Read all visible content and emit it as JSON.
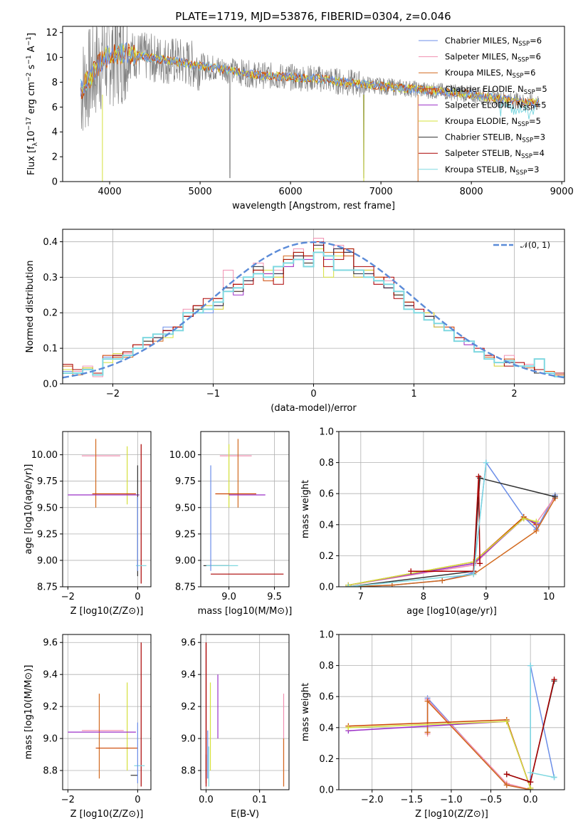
{
  "title": "PLATE=1719, MJD=53876, FIBERID=0304, z=0.046",
  "colors": [
    "#6b8ee8",
    "#f08fb0",
    "#d2691e",
    "#cc4400",
    "#9b30c8",
    "#d4e03a",
    "#333333",
    "#aa0000",
    "#7fd8e0"
  ],
  "chart_data": [
    {
      "id": "spectrum",
      "type": "line",
      "xlabel": "wavelength [Angstrom, rest frame]",
      "ylabel": "Flux [f_λ 10^-17 erg cm^-2 s^-1 A^-1]",
      "xlim": [
        3480,
        9030
      ],
      "ylim": [
        0,
        12.5
      ],
      "xticks": [
        "4000",
        "5000",
        "6000",
        "7000",
        "8000",
        "9000"
      ],
      "yticks": [
        "0",
        "2",
        "4",
        "6",
        "8",
        "10",
        "12"
      ],
      "grid": false,
      "legend_position": "top-right",
      "legend": [
        {
          "text": "Chabrier MILES, N",
          "sub": "SSP",
          "suffix": "=6"
        },
        {
          "text": "Salpeter MILES, N",
          "sub": "SSP",
          "suffix": "=6"
        },
        {
          "text": "Kroupa MILES, N",
          "sub": "SSP",
          "suffix": "=6"
        },
        {
          "text": "Chabrier ELODIE, N",
          "sub": "SSP",
          "suffix": "=5"
        },
        {
          "text": "Salpeter ELODIE, N",
          "sub": "SSP",
          "suffix": "=5"
        },
        {
          "text": "Kroupa ELODIE, N",
          "sub": "SSP",
          "suffix": "=5"
        },
        {
          "text": "Chabrier STELIB, N",
          "sub": "SSP",
          "suffix": "=3"
        },
        {
          "text": "Salpeter STELIB, N",
          "sub": "SSP",
          "suffix": "=4"
        },
        {
          "text": "Kroupa STELIB, N",
          "sub": "SSP",
          "suffix": "=3"
        }
      ],
      "model_curve": {
        "x": [
          3680,
          3800,
          3900,
          4000,
          4200,
          4500,
          4800,
          5000,
          5300,
          5600,
          6000,
          6300,
          6600,
          7000,
          7300,
          7600,
          7800,
          8000,
          8200,
          8400,
          8600,
          8750
        ],
        "y": [
          7.4,
          8.6,
          9.6,
          10.2,
          10.3,
          9.9,
          9.6,
          9.3,
          9.0,
          8.6,
          8.4,
          8.3,
          8.0,
          7.7,
          7.5,
          7.3,
          7.2,
          7.0,
          6.8,
          6.6,
          6.4,
          6.3
        ]
      }
    },
    {
      "id": "residuals",
      "type": "step",
      "xlabel": "(data-model)/error",
      "ylabel": "Normed distribution",
      "xlim": [
        -2.5,
        2.5
      ],
      "ylim": [
        0,
        0.435
      ],
      "xticks": [
        "−2",
        "−1",
        "0",
        "1",
        "2"
      ],
      "yticks": [
        "0.0",
        "0.1",
        "0.2",
        "0.3",
        "0.4"
      ],
      "grid": true,
      "legend_position": "top-right",
      "gaussian_label": "𝒩(0, 1)",
      "bin_width": 0.1,
      "bin_start": -2.5,
      "series": [
        [
          0.035,
          0.03,
          0.045,
          0.025,
          0.075,
          0.08,
          0.08,
          0.1,
          0.12,
          0.13,
          0.16,
          0.15,
          0.2,
          0.22,
          0.2,
          0.22,
          0.26,
          0.27,
          0.3,
          0.33,
          0.3,
          0.31,
          0.35,
          0.37,
          0.33,
          0.4,
          0.36,
          0.38,
          0.37,
          0.31,
          0.31,
          0.29,
          0.27,
          0.26,
          0.22,
          0.2,
          0.19,
          0.17,
          0.15,
          0.12,
          0.12,
          0.09,
          0.07,
          0.06,
          0.065,
          0.05,
          0.05,
          0.03,
          0.03,
          0.02
        ],
        [
          0.04,
          0.035,
          0.05,
          0.02,
          0.08,
          0.085,
          0.085,
          0.1,
          0.11,
          0.14,
          0.15,
          0.15,
          0.21,
          0.2,
          0.22,
          0.21,
          0.32,
          0.28,
          0.3,
          0.34,
          0.3,
          0.32,
          0.33,
          0.38,
          0.35,
          0.41,
          0.35,
          0.39,
          0.36,
          0.3,
          0.3,
          0.28,
          0.29,
          0.25,
          0.23,
          0.21,
          0.19,
          0.16,
          0.16,
          0.13,
          0.11,
          0.1,
          0.08,
          0.05,
          0.08,
          0.06,
          0.055,
          0.04,
          0.035,
          0.03
        ],
        [
          0.03,
          0.025,
          0.04,
          0.03,
          0.07,
          0.08,
          0.075,
          0.1,
          0.12,
          0.12,
          0.15,
          0.16,
          0.2,
          0.21,
          0.21,
          0.23,
          0.27,
          0.26,
          0.29,
          0.32,
          0.31,
          0.3,
          0.36,
          0.36,
          0.34,
          0.39,
          0.37,
          0.37,
          0.36,
          0.32,
          0.3,
          0.3,
          0.27,
          0.25,
          0.23,
          0.2,
          0.2,
          0.17,
          0.15,
          0.13,
          0.12,
          0.09,
          0.075,
          0.06,
          0.06,
          0.05,
          0.045,
          0.03,
          0.03,
          0.02
        ],
        [
          0.05,
          0.03,
          0.045,
          0.03,
          0.08,
          0.075,
          0.09,
          0.11,
          0.11,
          0.13,
          0.15,
          0.16,
          0.19,
          0.22,
          0.21,
          0.24,
          0.26,
          0.28,
          0.3,
          0.31,
          0.29,
          0.33,
          0.34,
          0.36,
          0.36,
          0.4,
          0.36,
          0.37,
          0.37,
          0.32,
          0.32,
          0.3,
          0.28,
          0.26,
          0.22,
          0.2,
          0.19,
          0.17,
          0.16,
          0.12,
          0.12,
          0.09,
          0.07,
          0.06,
          0.07,
          0.05,
          0.05,
          0.04,
          0.035,
          0.025
        ],
        [
          0.03,
          0.03,
          0.04,
          0.03,
          0.07,
          0.08,
          0.08,
          0.1,
          0.12,
          0.13,
          0.15,
          0.15,
          0.2,
          0.2,
          0.21,
          0.22,
          0.27,
          0.25,
          0.29,
          0.32,
          0.31,
          0.31,
          0.33,
          0.36,
          0.35,
          0.39,
          0.35,
          0.38,
          0.37,
          0.3,
          0.31,
          0.29,
          0.27,
          0.25,
          0.22,
          0.2,
          0.19,
          0.16,
          0.15,
          0.12,
          0.11,
          0.09,
          0.07,
          0.06,
          0.06,
          0.05,
          0.05,
          0.03,
          0.03,
          0.02
        ],
        [
          0.04,
          0.03,
          0.045,
          0.03,
          0.06,
          0.085,
          0.08,
          0.1,
          0.12,
          0.14,
          0.13,
          0.15,
          0.2,
          0.21,
          0.22,
          0.21,
          0.26,
          0.27,
          0.3,
          0.32,
          0.32,
          0.3,
          0.35,
          0.37,
          0.33,
          0.38,
          0.3,
          0.36,
          0.38,
          0.3,
          0.32,
          0.29,
          0.28,
          0.25,
          0.23,
          0.2,
          0.2,
          0.16,
          0.15,
          0.12,
          0.12,
          0.09,
          0.07,
          0.05,
          0.065,
          0.05,
          0.05,
          0.03,
          0.03,
          0.02
        ],
        [
          0.03,
          0.03,
          0.04,
          0.03,
          0.07,
          0.08,
          0.08,
          0.1,
          0.12,
          0.13,
          0.15,
          0.15,
          0.19,
          0.21,
          0.21,
          0.22,
          0.27,
          0.26,
          0.29,
          0.33,
          0.3,
          0.31,
          0.34,
          0.36,
          0.34,
          0.39,
          0.36,
          0.38,
          0.37,
          0.31,
          0.31,
          0.29,
          0.27,
          0.25,
          0.22,
          0.2,
          0.19,
          0.17,
          0.15,
          0.12,
          0.12,
          0.09,
          0.07,
          0.06,
          0.06,
          0.05,
          0.05,
          0.03,
          0.03,
          0.02
        ],
        [
          0.055,
          0.04,
          0.04,
          0.03,
          0.07,
          0.08,
          0.09,
          0.11,
          0.11,
          0.14,
          0.15,
          0.16,
          0.19,
          0.22,
          0.24,
          0.24,
          0.26,
          0.28,
          0.28,
          0.32,
          0.3,
          0.28,
          0.35,
          0.37,
          0.36,
          0.4,
          0.33,
          0.35,
          0.38,
          0.33,
          0.33,
          0.28,
          0.3,
          0.24,
          0.23,
          0.21,
          0.18,
          0.17,
          0.15,
          0.13,
          0.12,
          0.1,
          0.08,
          0.06,
          0.05,
          0.06,
          0.05,
          0.04,
          0.03,
          0.03
        ],
        [
          0.03,
          0.03,
          0.04,
          0.025,
          0.07,
          0.07,
          0.08,
          0.1,
          0.13,
          0.14,
          0.14,
          0.15,
          0.2,
          0.2,
          0.21,
          0.23,
          0.26,
          0.27,
          0.3,
          0.31,
          0.3,
          0.33,
          0.34,
          0.35,
          0.33,
          0.37,
          0.36,
          0.32,
          0.32,
          0.32,
          0.3,
          0.29,
          0.28,
          0.26,
          0.21,
          0.2,
          0.18,
          0.17,
          0.15,
          0.12,
          0.12,
          0.09,
          0.07,
          0.06,
          0.065,
          0.05,
          0.05,
          0.07,
          0.03,
          0.02
        ]
      ]
    },
    {
      "id": "age_vs_Z",
      "type": "errorbar",
      "xlabel": "Z [log10(Z/Z⊙)]",
      "ylabel": "age  [log10(age/yr)]",
      "xlim": [
        -2.15,
        0.38
      ],
      "ylim": [
        8.75,
        10.22
      ],
      "xticks": [
        "−2",
        "0"
      ],
      "yticks": [
        "8.75",
        "9.00",
        "9.25",
        "9.50",
        "9.75",
        "10.00"
      ],
      "grid": true
    },
    {
      "id": "age_vs_mass",
      "type": "errorbar",
      "xlabel": "mass [log10(M/M⊙)]",
      "ylabel": "",
      "xlim": [
        8.69,
        9.66
      ],
      "ylim": [
        8.75,
        10.22
      ],
      "xticks": [
        "9.0",
        "9.5"
      ],
      "yticks": [
        "8.75",
        "9.00",
        "9.25",
        "9.50",
        "9.75",
        "10.00"
      ],
      "grid": true
    },
    {
      "id": "massweight_vs_age",
      "type": "line",
      "xlabel": "age  [log10(age/yr)]",
      "ylabel": "mass weight",
      "xlim": [
        6.65,
        10.25
      ],
      "ylim": [
        0,
        1.0
      ],
      "xticks": [
        "7",
        "8",
        "9",
        "10"
      ],
      "yticks": [
        "0.0",
        "0.2",
        "0.4",
        "0.6",
        "0.8",
        "1.0"
      ],
      "grid": true,
      "series": [
        {
          "x": [
            6.8,
            7.5,
            8.3,
            8.8,
            9.0,
            9.6,
            9.8,
            10.1
          ],
          "y": [
            0.0,
            0.01,
            0.04,
            0.09,
            0.8,
            0.45,
            0.37,
            0.59
          ]
        },
        {
          "x": [
            6.8,
            8.8,
            9.6,
            9.8,
            10.1
          ],
          "y": [
            0.01,
            0.14,
            0.45,
            0.41,
            0.58
          ]
        },
        {
          "x": [
            6.8,
            7.5,
            8.3,
            8.8,
            9.8,
            10.1
          ],
          "y": [
            0.0,
            0.01,
            0.04,
            0.08,
            0.36,
            0.57
          ]
        },
        {
          "x": [
            6.8,
            8.8,
            9.6,
            9.8
          ],
          "y": [
            0.01,
            0.16,
            0.45,
            0.4
          ]
        },
        {
          "x": [
            6.8,
            8.8,
            9.6,
            9.8
          ],
          "y": [
            0.01,
            0.15,
            0.44,
            0.41
          ]
        },
        {
          "x": [
            6.8,
            8.8,
            9.6,
            9.8
          ],
          "y": [
            0.01,
            0.16,
            0.44,
            0.42
          ]
        },
        {
          "x": [
            6.8,
            8.8,
            8.9,
            10.1
          ],
          "y": [
            0.0,
            0.1,
            0.7,
            0.58
          ]
        },
        {
          "x": [
            7.8,
            8.8,
            8.88,
            8.9
          ],
          "y": [
            0.1,
            0.1,
            0.71,
            0.15
          ]
        },
        {
          "x": [
            6.8,
            8.8,
            9.0
          ],
          "y": [
            0.0,
            0.08,
            0.8
          ]
        }
      ]
    },
    {
      "id": "mass_vs_Z",
      "type": "errorbar",
      "xlabel": "Z [log10(Z/Z⊙)]",
      "ylabel": "mass [log10(M/M⊙)]",
      "xlim": [
        -2.15,
        0.38
      ],
      "ylim": [
        8.68,
        9.65
      ],
      "xticks": [
        "−2",
        "0"
      ],
      "yticks": [
        "8.8",
        "9.0",
        "9.2",
        "9.4",
        "9.6"
      ],
      "grid": true
    },
    {
      "id": "mass_vs_ebv",
      "type": "errorbar",
      "xlabel": "E(B-V)",
      "ylabel": "",
      "xlim": [
        -0.01,
        0.155
      ],
      "ylim": [
        8.68,
        9.65
      ],
      "xticks": [
        "0.0",
        "0.1"
      ],
      "yticks": [
        "8.8",
        "9.0",
        "9.2",
        "9.4",
        "9.6"
      ],
      "grid": true
    },
    {
      "id": "massweight_vs_Z",
      "type": "line",
      "xlabel": "Z [log10(Z/Z⊙)]",
      "ylabel": "mass weight",
      "xlim": [
        -2.42,
        0.43
      ],
      "ylim": [
        0,
        1.0
      ],
      "xticks": [
        "−2.0",
        "−1.5",
        "−1.0",
        "−0.5",
        "0.0"
      ],
      "yticks": [
        "0.0",
        "0.2",
        "0.4",
        "0.6",
        "0.8",
        "1.0"
      ],
      "grid": true,
      "series": [
        {
          "x": [
            -1.3,
            -1.3,
            -0.3,
            0.0,
            0.0,
            0.3
          ],
          "y": [
            0.37,
            0.59,
            0.03,
            0.0,
            0.8,
            0.08
          ]
        },
        {
          "x": [
            -1.3,
            -1.3,
            -0.3,
            0.0
          ],
          "y": [
            0.36,
            0.58,
            0.04,
            0.0
          ]
        },
        {
          "x": [
            -1.3,
            -1.3,
            -0.3,
            0.0
          ],
          "y": [
            0.37,
            0.57,
            0.03,
            0.0
          ]
        },
        {
          "x": [
            -2.3,
            -0.3,
            0.0
          ],
          "y": [
            0.41,
            0.45,
            0.01
          ]
        },
        {
          "x": [
            -2.3,
            -0.3,
            0.0
          ],
          "y": [
            0.38,
            0.44,
            0.01
          ]
        },
        {
          "x": [
            -2.3,
            -0.3,
            0.0
          ],
          "y": [
            0.4,
            0.44,
            0.01
          ]
        },
        {
          "x": [
            -0.3,
            0.0,
            0.3
          ],
          "y": [
            0.1,
            0.05,
            0.7
          ]
        },
        {
          "x": [
            -0.3,
            0.0,
            0.0,
            0.3
          ],
          "y": [
            0.1,
            0.05,
            0.05,
            0.71
          ]
        },
        {
          "x": [
            0.0,
            0.0,
            0.3
          ],
          "y": [
            0.8,
            0.11,
            0.08
          ]
        }
      ]
    }
  ]
}
